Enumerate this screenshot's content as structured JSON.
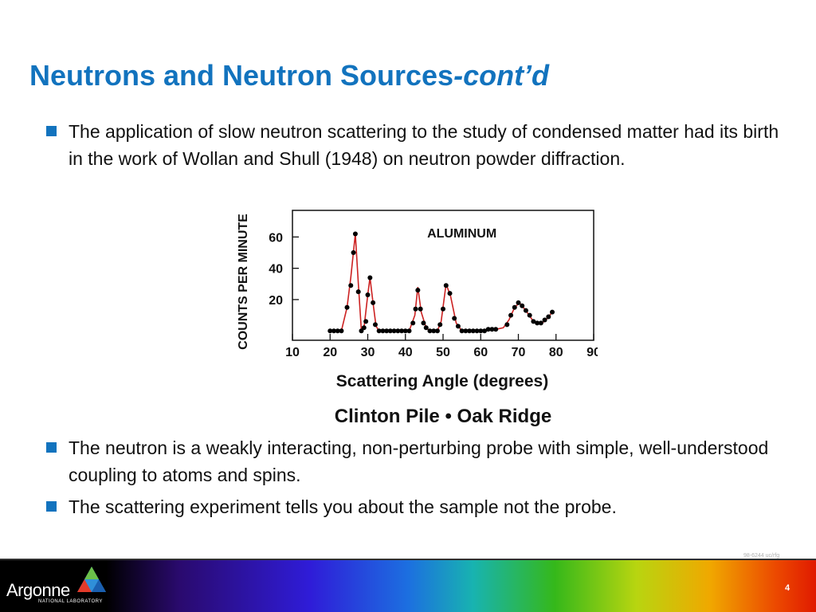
{
  "slide": {
    "title_main": "Neutrons and Neutron Sources",
    "title_suffix": "-cont’d",
    "bullets": [
      "The application of slow neutron scattering to the study of condensed matter had its birth in the work of Wollan and Shull (1948) on neutron powder diffraction.",
      "The neutron is a weakly interacting, non-perturbing probe with simple, well-understood coupling to atoms and spins.",
      "The scattering experiment tells you about the sample not the probe."
    ],
    "credit": "98-6244 uc/rfg",
    "page_number": "4"
  },
  "footer": {
    "logo_text": "Argonne",
    "logo_subtext": "NATIONAL LABORATORY",
    "accent_colors": [
      "#1273be",
      "#cc2222"
    ]
  },
  "chart_data": {
    "type": "scatter",
    "inset_label": "ALUMINUM",
    "xlabel": "Scattering Angle (degrees)",
    "ylabel": "COUNTS PER MINUTE",
    "caption": "Clinton Pile • Oak Ridge",
    "xlim": [
      10,
      90
    ],
    "ylim": [
      -6,
      77
    ],
    "xticks": [
      10,
      20,
      30,
      40,
      50,
      60,
      70,
      80,
      90
    ],
    "yticks": [
      20,
      40,
      60
    ],
    "curve_color": "#cc2222",
    "marker_color": "#000000",
    "points": [
      [
        20,
        0
      ],
      [
        21,
        0
      ],
      [
        22,
        0
      ],
      [
        23,
        0
      ],
      [
        24.5,
        15
      ],
      [
        25.5,
        29
      ],
      [
        26.2,
        50
      ],
      [
        26.7,
        62
      ],
      [
        27.5,
        25
      ],
      [
        28.3,
        0
      ],
      [
        29,
        2
      ],
      [
        29.5,
        6
      ],
      [
        30,
        23
      ],
      [
        30.6,
        34
      ],
      [
        31.4,
        18
      ],
      [
        32,
        4
      ],
      [
        33,
        0
      ],
      [
        34,
        0
      ],
      [
        35,
        0
      ],
      [
        36,
        0
      ],
      [
        37,
        0
      ],
      [
        38,
        0
      ],
      [
        39,
        0
      ],
      [
        40,
        0
      ],
      [
        41,
        0
      ],
      [
        42,
        5
      ],
      [
        42.7,
        14
      ],
      [
        43.3,
        26
      ],
      [
        44,
        14
      ],
      [
        44.8,
        5
      ],
      [
        45.5,
        2
      ],
      [
        46.5,
        0
      ],
      [
        47.5,
        0
      ],
      [
        48.5,
        0
      ],
      [
        49.2,
        4
      ],
      [
        50,
        14
      ],
      [
        50.8,
        29
      ],
      [
        51.8,
        24
      ],
      [
        53,
        8
      ],
      [
        54,
        3
      ],
      [
        55,
        0
      ],
      [
        56,
        0
      ],
      [
        57,
        0
      ],
      [
        58,
        0
      ],
      [
        59,
        0
      ],
      [
        60,
        0
      ],
      [
        61,
        0
      ],
      [
        62,
        1
      ],
      [
        63,
        1
      ],
      [
        64,
        1
      ],
      [
        67,
        4
      ],
      [
        68,
        10
      ],
      [
        69,
        15
      ],
      [
        70,
        18
      ],
      [
        71,
        16
      ],
      [
        72,
        13
      ],
      [
        73,
        10
      ],
      [
        74,
        6
      ],
      [
        75,
        5
      ],
      [
        76,
        5
      ],
      [
        77,
        7
      ],
      [
        78,
        9
      ],
      [
        79,
        12
      ]
    ],
    "curve": [
      [
        20,
        0
      ],
      [
        23,
        0
      ],
      [
        24.5,
        15
      ],
      [
        25.5,
        34
      ],
      [
        26.7,
        62
      ],
      [
        27.5,
        30
      ],
      [
        28.3,
        0
      ],
      [
        29,
        2
      ],
      [
        30,
        23
      ],
      [
        30.6,
        34
      ],
      [
        31.4,
        18
      ],
      [
        32.2,
        3
      ],
      [
        33,
        0
      ],
      [
        41,
        0
      ],
      [
        42.5,
        10
      ],
      [
        43.3,
        28
      ],
      [
        44.2,
        12
      ],
      [
        45.5,
        2
      ],
      [
        46.5,
        0
      ],
      [
        48.5,
        0
      ],
      [
        49.5,
        6
      ],
      [
        50.8,
        30
      ],
      [
        52,
        22
      ],
      [
        53.5,
        5
      ],
      [
        55,
        0
      ],
      [
        61,
        0
      ],
      [
        64,
        1
      ],
      [
        66,
        2
      ],
      [
        67.5,
        7
      ],
      [
        69,
        15
      ],
      [
        70.3,
        18
      ],
      [
        72,
        13
      ],
      [
        74,
        6
      ],
      [
        75.5,
        4.5
      ],
      [
        77,
        6
      ],
      [
        79,
        12
      ]
    ]
  }
}
